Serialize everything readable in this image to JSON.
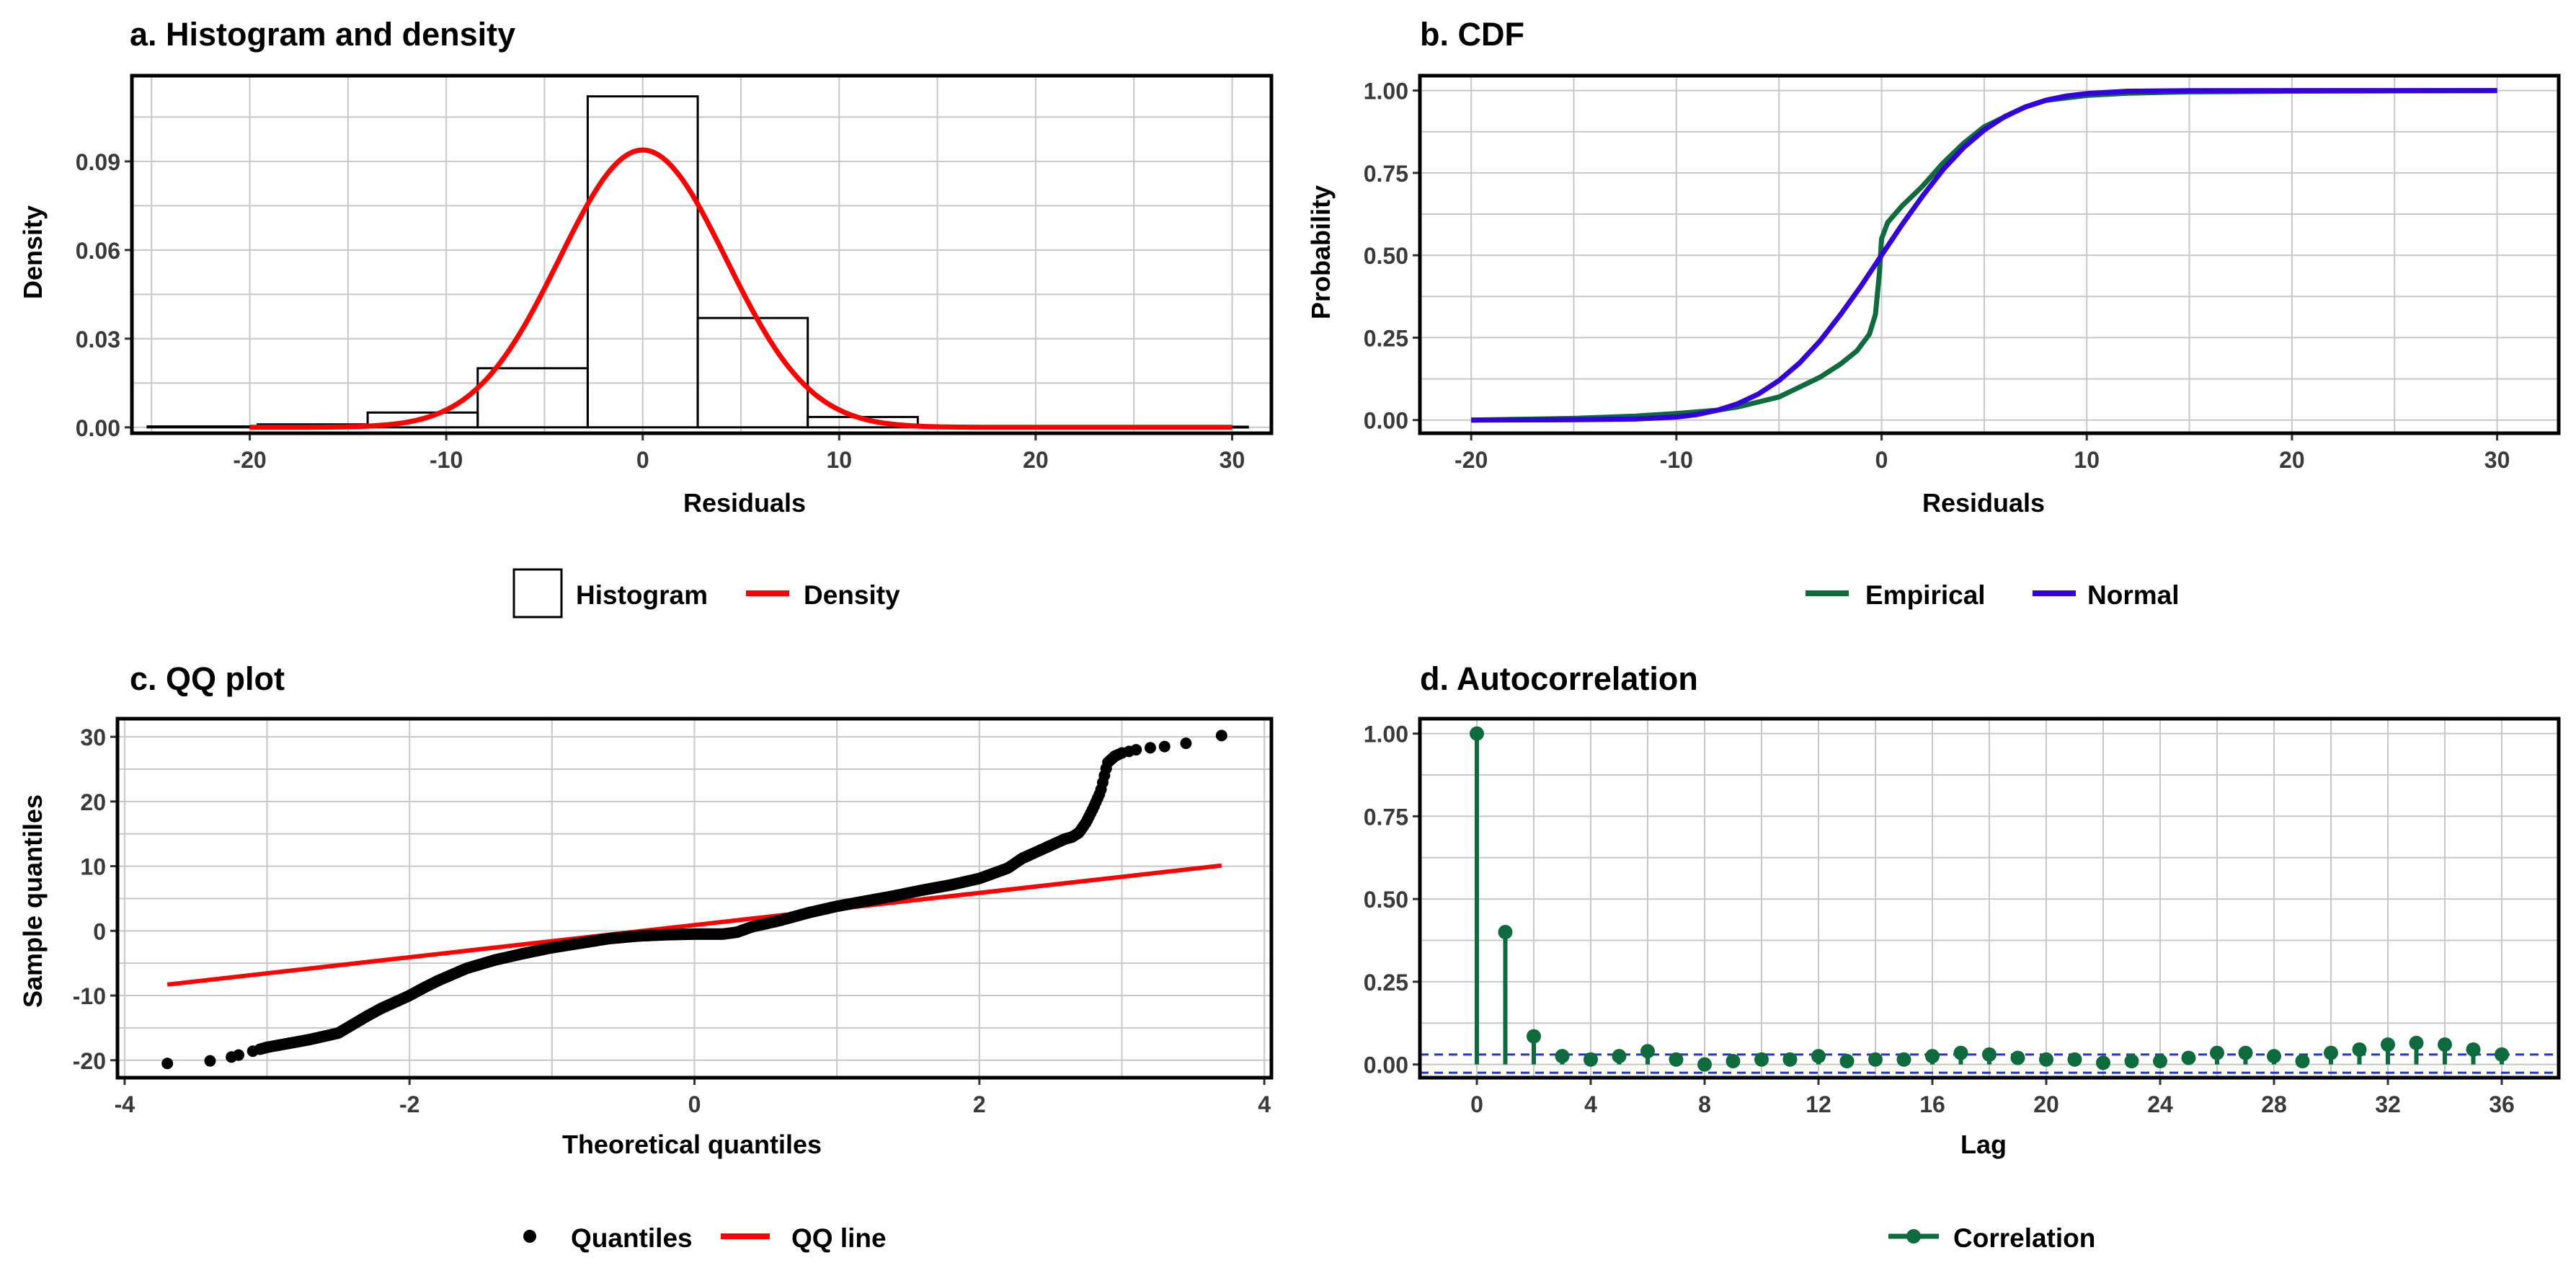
{
  "colors": {
    "red": "#ff0000",
    "green": "#0e6b3e",
    "blue": "#3300dd",
    "ci": "#2233dd",
    "grid": "#c8c8c8",
    "black": "#000000"
  },
  "chart_data": [
    {
      "type": "histogram",
      "title": "a. Histogram and density",
      "xlabel": "Residuals",
      "ylabel": "Density",
      "xlim": [
        -26,
        32
      ],
      "ylim": [
        -0.002,
        0.119
      ],
      "xticks": [
        -20,
        -10,
        0,
        10,
        20,
        30
      ],
      "xtick_labels": [
        "-20",
        "-10",
        "0",
        "10",
        "20",
        "30"
      ],
      "yticks": [
        0,
        0.03,
        0.06,
        0.09
      ],
      "ytick_labels": [
        "0.00",
        "0.03",
        "0.06",
        "0.09"
      ],
      "grid": true,
      "bins": [
        {
          "x0": -25.2,
          "x1": -19.6,
          "density": 0.0003
        },
        {
          "x0": -19.6,
          "x1": -14.0,
          "density": 0.001
        },
        {
          "x0": -14.0,
          "x1": -8.4,
          "density": 0.005
        },
        {
          "x0": -8.4,
          "x1": -2.8,
          "density": 0.02
        },
        {
          "x0": -2.8,
          "x1": 2.8,
          "density": 0.112
        },
        {
          "x0": 2.8,
          "x1": 8.4,
          "density": 0.037
        },
        {
          "x0": 8.4,
          "x1": 14.0,
          "density": 0.0035
        },
        {
          "x0": 14.0,
          "x1": 19.6,
          "density": 0.0003
        },
        {
          "x0": 19.6,
          "x1": 25.2,
          "density": 0.0002
        },
        {
          "x0": 25.2,
          "x1": 30.8,
          "density": 0.0002
        }
      ],
      "density_curve": {
        "mean": 0,
        "sd": 4.25,
        "x_from": -20,
        "x_to": 30
      },
      "legend": [
        {
          "label": "Histogram",
          "kind": "box"
        },
        {
          "label": "Density",
          "kind": "line",
          "color": "#ff0000"
        }
      ],
      "legend_position": "bottom"
    },
    {
      "type": "line",
      "title": "b. CDF",
      "xlabel": "Residuals",
      "ylabel": "Probability",
      "xlim": [
        -22.5,
        33
      ],
      "ylim": [
        -0.04,
        1.045
      ],
      "xticks": [
        -20,
        -10,
        0,
        10,
        20,
        30
      ],
      "xtick_labels": [
        "-20",
        "-10",
        "0",
        "10",
        "20",
        "30"
      ],
      "yticks": [
        0,
        0.25,
        0.5,
        0.75,
        1
      ],
      "ytick_labels": [
        "0.00",
        "0.25",
        "0.50",
        "0.75",
        "1.00"
      ],
      "grid": true,
      "series": [
        {
          "name": "Empirical",
          "color": "#0e6b3e",
          "x": [
            -20,
            -15,
            -12,
            -10,
            -8,
            -7,
            -6,
            -5,
            -4,
            -3,
            -2,
            -1.2,
            -0.6,
            -0.3,
            -0.1,
            0,
            0.3,
            1,
            2,
            3,
            4,
            5,
            6,
            7,
            8,
            10,
            12,
            15,
            20,
            25,
            30
          ],
          "y": [
            0,
            0.005,
            0.012,
            0.02,
            0.03,
            0.04,
            0.055,
            0.07,
            0.1,
            0.13,
            0.17,
            0.21,
            0.26,
            0.32,
            0.45,
            0.55,
            0.6,
            0.65,
            0.71,
            0.78,
            0.84,
            0.89,
            0.92,
            0.95,
            0.97,
            0.985,
            0.992,
            0.996,
            0.998,
            0.999,
            1.0
          ]
        },
        {
          "name": "Normal",
          "color": "#3300dd",
          "x": [
            -20,
            -15,
            -12,
            -10,
            -9,
            -8,
            -7,
            -6,
            -5,
            -4,
            -3,
            -2,
            -1,
            0,
            1,
            2,
            3,
            4,
            5,
            6,
            7,
            8,
            9,
            10,
            12,
            15,
            20,
            25,
            30
          ],
          "y": [
            0,
            0.0008,
            0.0032,
            0.0093,
            0.0166,
            0.0297,
            0.05,
            0.079,
            0.12,
            0.173,
            0.24,
            0.32,
            0.407,
            0.5,
            0.593,
            0.68,
            0.76,
            0.827,
            0.88,
            0.921,
            0.95,
            0.9703,
            0.9834,
            0.9907,
            0.998,
            0.9998,
            1.0,
            1.0,
            1.0
          ]
        }
      ],
      "legend_position": "bottom"
    },
    {
      "type": "scatter",
      "title": "c. QQ plot",
      "xlabel": "Theoretical quantiles",
      "ylabel": "Sample quantiles",
      "xlim": [
        -4.05,
        4.05
      ],
      "ylim": [
        -22.7,
        32.8
      ],
      "xticks": [
        -4,
        -2,
        0,
        2,
        4
      ],
      "xtick_labels": [
        "-4",
        "-2",
        "0",
        "2",
        "4"
      ],
      "yticks": [
        -20,
        -10,
        0,
        10,
        20,
        30
      ],
      "ytick_labels": [
        "-20",
        "-10",
        "0",
        "10",
        "20",
        "30"
      ],
      "grid": true,
      "quantile_curve": {
        "x": [
          -3.7,
          -3.4,
          -3.25,
          -3.1,
          -3.0,
          -2.85,
          -2.7,
          -2.6,
          -2.5,
          -2.4,
          -2.3,
          -2.2,
          -2.1,
          -2.0,
          -1.9,
          -1.8,
          -1.6,
          -1.4,
          -1.2,
          -1.0,
          -0.8,
          -0.6,
          -0.4,
          -0.2,
          0,
          0.2,
          0.3,
          0.4,
          0.6,
          0.8,
          1.0,
          1.2,
          1.4,
          1.6,
          1.8,
          2.0,
          2.2,
          2.3,
          2.4,
          2.5,
          2.6,
          2.65,
          2.7,
          2.75,
          2.8,
          2.85,
          2.9,
          2.95,
          3.0,
          3.1,
          3.2,
          3.35,
          3.5,
          3.7
        ],
        "y": [
          -20.5,
          -20.1,
          -19.5,
          -18.6,
          -18.0,
          -17.4,
          -16.8,
          -16.3,
          -15.8,
          -14.5,
          -13.2,
          -12.0,
          -11.0,
          -10.0,
          -8.8,
          -7.7,
          -5.8,
          -4.5,
          -3.5,
          -2.6,
          -1.9,
          -1.2,
          -0.8,
          -0.6,
          -0.5,
          -0.5,
          -0.2,
          0.6,
          1.6,
          2.8,
          3.8,
          4.6,
          5.4,
          6.3,
          7.1,
          8.1,
          9.7,
          11.2,
          12.2,
          13.2,
          14.2,
          14.5,
          15.2,
          16.8,
          19.0,
          21.5,
          26.0,
          27.0,
          27.5,
          28.0,
          28.3,
          28.6,
          29.2,
          30.2
        ]
      },
      "qq_line": {
        "x": [
          -3.7,
          3.7
        ],
        "y": [
          -8.3,
          10.1
        ],
        "color": "#ff0000"
      },
      "legend": [
        {
          "label": "Quantiles",
          "kind": "point"
        },
        {
          "label": "QQ line",
          "kind": "line",
          "color": "#ff0000"
        }
      ],
      "legend_position": "bottom"
    },
    {
      "type": "stem",
      "title": "d. Autocorrelation",
      "xlabel": "Lag",
      "ylabel": "",
      "xlim": [
        -2,
        38
      ],
      "ylim": [
        -0.04,
        1.045
      ],
      "xticks": [
        0,
        4,
        8,
        12,
        16,
        20,
        24,
        28,
        32,
        36
      ],
      "xtick_labels": [
        "0",
        "4",
        "8",
        "12",
        "16",
        "20",
        "24",
        "28",
        "32",
        "36"
      ],
      "yticks": [
        0,
        0.25,
        0.5,
        0.75,
        1
      ],
      "ytick_labels": [
        "0.00",
        "0.25",
        "0.50",
        "0.75",
        "1.00"
      ],
      "grid": true,
      "lags": [
        0,
        1,
        2,
        3,
        4,
        5,
        6,
        7,
        8,
        9,
        10,
        11,
        12,
        13,
        14,
        15,
        16,
        17,
        18,
        19,
        20,
        21,
        22,
        23,
        24,
        25,
        26,
        27,
        28,
        29,
        30,
        31,
        32,
        33,
        34,
        35,
        36
      ],
      "values": [
        1.0,
        0.4,
        0.085,
        0.025,
        0.015,
        0.025,
        0.04,
        0.015,
        0.0,
        0.01,
        0.015,
        0.015,
        0.025,
        0.01,
        0.015,
        0.015,
        0.025,
        0.035,
        0.03,
        0.02,
        0.015,
        0.015,
        0.005,
        0.01,
        0.01,
        0.02,
        0.035,
        0.035,
        0.025,
        0.01,
        0.035,
        0.045,
        0.06,
        0.065,
        0.06,
        0.045,
        0.03
      ],
      "confidence_bounds": [
        0.03,
        -0.025
      ],
      "legend": [
        {
          "label": "Correlation",
          "kind": "lollipop",
          "color": "#0e6b3e"
        }
      ],
      "legend_position": "bottom"
    }
  ]
}
